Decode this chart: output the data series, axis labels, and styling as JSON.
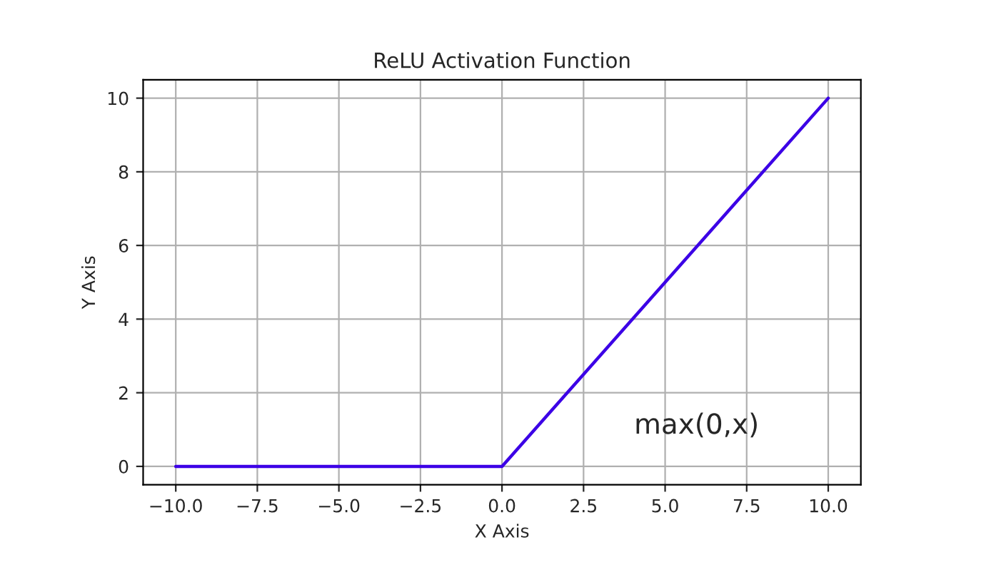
{
  "chart_data": {
    "type": "line",
    "title": "ReLU Activation Function",
    "xlabel": "X Axis",
    "ylabel": "Y Axis",
    "x": [
      -10,
      0,
      10
    ],
    "series": [
      {
        "color": "#3c00e6",
        "values": [
          0,
          0,
          10
        ]
      }
    ],
    "xlim": [
      -11,
      11
    ],
    "xticks": [
      {
        "value": -10,
        "label": "−10.0"
      },
      {
        "value": -7.5,
        "label": "−7.5"
      },
      {
        "value": -5,
        "label": "−5.0"
      },
      {
        "value": -2.5,
        "label": "−2.5"
      },
      {
        "value": 0,
        "label": "0.0"
      },
      {
        "value": 2.5,
        "label": "2.5"
      },
      {
        "value": 5,
        "label": "5.0"
      },
      {
        "value": 7.5,
        "label": "7.5"
      },
      {
        "value": 10,
        "label": "10.0"
      }
    ],
    "ylim": [
      -0.5,
      10.5
    ],
    "yticks": [
      0,
      2,
      4,
      6,
      8,
      10
    ],
    "grid": true,
    "line_style": "solid",
    "annotations": [
      "max(0,x)"
    ]
  }
}
